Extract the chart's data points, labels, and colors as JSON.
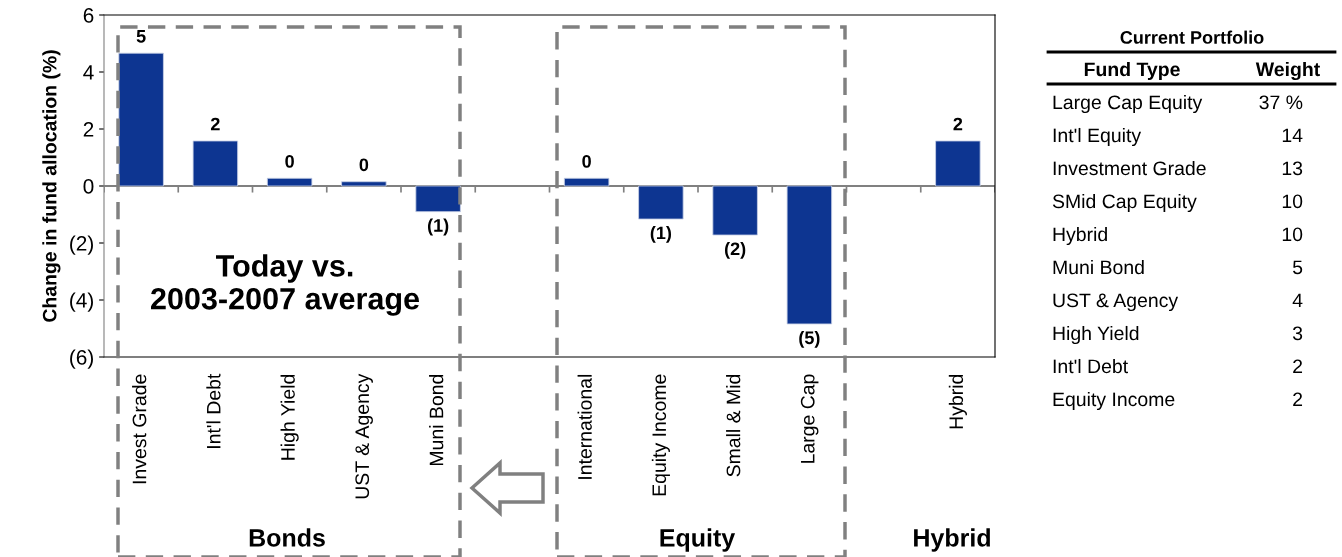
{
  "chart_data": [
    {
      "type": "bar",
      "ylabel": "Change in fund allocation (%)",
      "categories": [
        "Invest Grade",
        "Int'l Debt",
        "High Yield",
        "UST & Agency",
        "Muni Bond",
        null,
        "International",
        "Equity Income",
        "Small & Mid",
        "Large Cap",
        null,
        "Hybrid"
      ],
      "values": [
        4.66,
        1.58,
        0.27,
        0.15,
        -0.9,
        null,
        0.27,
        -1.16,
        -1.72,
        -4.84,
        null,
        1.58
      ],
      "value_labels": [
        "5",
        "2",
        "0",
        "0",
        "(1)",
        null,
        "0",
        "(1)",
        "(2)",
        "(5)",
        null,
        "2"
      ],
      "color": "#0d3591",
      "ylim": [
        -6,
        6
      ],
      "yticks": [
        {
          "value": -6,
          "label": "(6)"
        },
        {
          "value": -4,
          "label": "(4)"
        },
        {
          "value": -2,
          "label": "(2)"
        },
        0,
        2,
        4,
        6
      ],
      "ref_lines": [
        {
          "axis": "y",
          "value": 0,
          "color": "#808080"
        }
      ],
      "grid": false,
      "legend": false,
      "annotations": [
        "Today vs.\n2003-2007 average",
        "Bonds",
        "Equity",
        "Hybrid"
      ]
    },
    {
      "type": "other",
      "title": "Current Portfolio",
      "annotations": [
        "Fund Type",
        "Weight"
      ],
      "categories": [
        "Large Cap Equity",
        "Int'l Equity",
        "Investment Grade",
        "SMid Cap Equity",
        "Hybrid",
        "Muni Bond",
        "UST & Agency",
        "High Yield",
        "Int'l Debt",
        "Equity Income"
      ],
      "values": [
        37,
        14,
        13,
        10,
        10,
        5,
        4,
        3,
        2,
        2
      ],
      "value_labels": [
        "37 %",
        "14",
        "13",
        "10",
        "10",
        "5",
        "4",
        "3",
        "2",
        "2"
      ]
    }
  ]
}
